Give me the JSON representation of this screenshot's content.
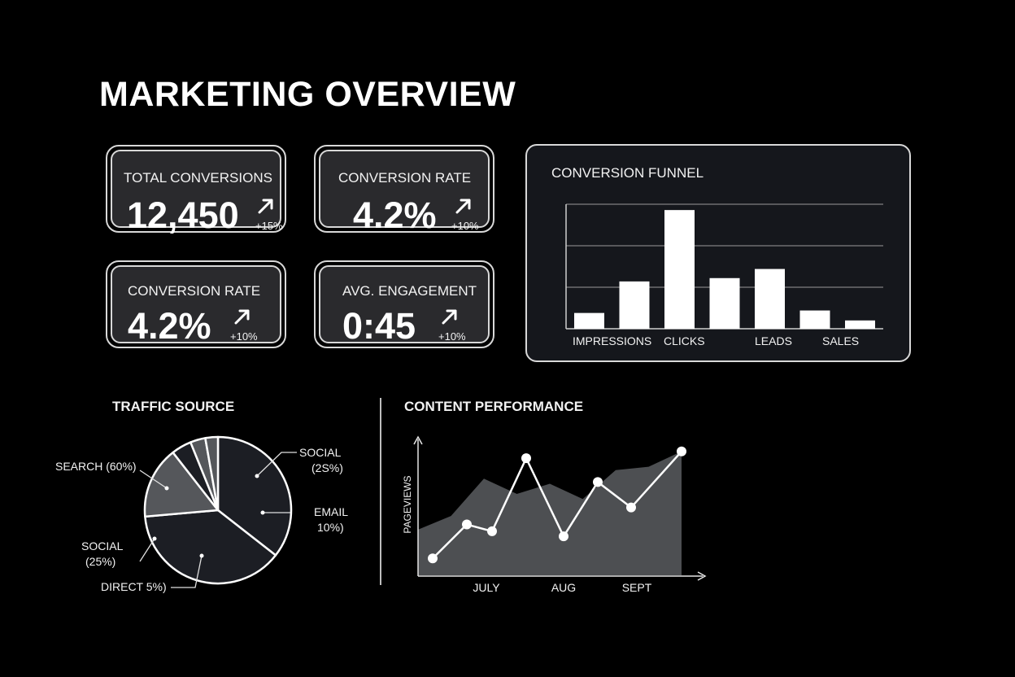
{
  "page": {
    "title": "MARKETING OVERVIEW"
  },
  "kpis": [
    {
      "label": "TOTAL CONVERSIONS",
      "value": "12,450",
      "delta": "+15%",
      "trend_icon": "arrow-up-right-icon"
    },
    {
      "label": "CONVERSION RATE",
      "value": "4.2%",
      "delta": "+10%",
      "trend_icon": "arrow-up-right-icon"
    },
    {
      "label": "CONVERSION RATE",
      "value": "4.2%",
      "delta": "+10%",
      "trend_icon": "arrow-up-right-icon"
    },
    {
      "label": "AVG. ENGAGEMENT",
      "value": "0:45",
      "delta": "+10%",
      "trend_icon": "arrow-up-right-icon"
    }
  ],
  "colors": {
    "background": "#000000",
    "panel": "#2a2a2d",
    "funnel_panel": "#15171c",
    "border": "#d8d8d8",
    "text": "#ffffff",
    "pie_slice_dark": "#1c1e24",
    "pie_slice_gray": "#55575b",
    "area_fill": "#4d4f52"
  },
  "chart_data": [
    {
      "type": "bar",
      "title": "CONVERSION FUNNEL",
      "category_labels": [
        "IMPRESSIONS",
        "CLICKS",
        "LEADS",
        "SALES"
      ],
      "values": [
        1.9,
        5.7,
        14.3,
        6.1,
        7.2,
        2.2,
        1.0
      ],
      "ylim": [
        0,
        15
      ],
      "grid": true
    },
    {
      "type": "pie",
      "title": "TRAFFIC SOURCE",
      "slices": [
        {
          "label": "SOCIAL",
          "sublabel": "(25%)",
          "value": 25
        },
        {
          "label": "EMAIL",
          "sublabel": "10%)",
          "value": 10
        },
        {
          "label": "DIRECT 5%)",
          "value": 5
        },
        {
          "label": "SOCIAL",
          "sublabel": "(25%)",
          "value": 25
        },
        {
          "label": "SEARCH (60%)",
          "value": 60
        }
      ],
      "display_labels": {
        "search": "SEARCH (60%)",
        "social_right_1": "SOCIAL",
        "social_right_2": "(2S%)",
        "email_1": "EMAIL",
        "email_2": "10%)",
        "social_left_1": "SOCIAL",
        "social_left_2": "(25%)",
        "direct": "DIRECT 5%)"
      }
    },
    {
      "type": "line",
      "title": "CONTENT PERFORMANCE",
      "ylabel": "PAGEVIEWS",
      "x_tick_labels": [
        "JULY",
        "AUG",
        "SEPT"
      ],
      "area_series": {
        "values": [
          2.5,
          3.3,
          5.5,
          4.6,
          5.2,
          4.3,
          6.0,
          6.2,
          7.1
        ]
      },
      "line_series": {
        "values": [
          0.8,
          2.8,
          2.4,
          6.7,
          2.1,
          5.3,
          3.8,
          7.1
        ],
        "markers": true
      },
      "ylim": [
        0,
        8
      ],
      "grid": false
    }
  ]
}
